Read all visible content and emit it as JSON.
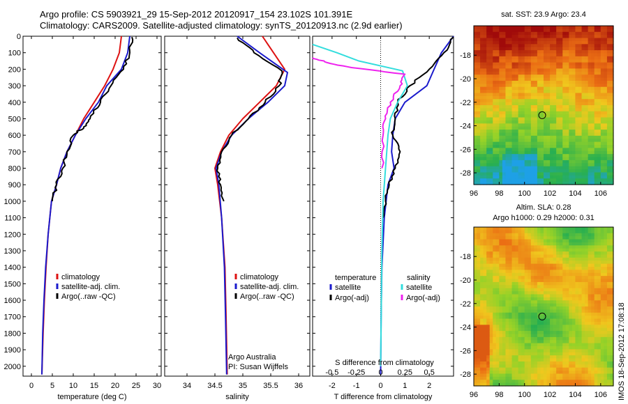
{
  "header": {
    "line1": "Argo profile: CS 5903921_29 15-Sep-2012 20120917_154 23.102S 101.391E",
    "line2": "Climatology: CARS2009. Satellite-adjusted climatology: synTS_20120913.nc (2.9d earlier)"
  },
  "side_label": "IMOS 18-Sep-2012 17:08:18",
  "colors": {
    "red": "#dd1111",
    "blue": "#1a1acc",
    "black": "#000000",
    "cyan": "#33dddd",
    "magenta": "#ee22ee"
  },
  "chart_data": [
    {
      "type": "line",
      "xlabel": "temperature (deg C)",
      "xlim": [
        -2,
        31
      ],
      "xticks": [
        0,
        5,
        10,
        15,
        20,
        25,
        30
      ],
      "ylim": [
        0,
        2060
      ],
      "yticks": [
        0,
        100,
        200,
        300,
        400,
        500,
        600,
        700,
        800,
        900,
        1000,
        1100,
        1200,
        1300,
        1400,
        1500,
        1600,
        1700,
        1800,
        1900,
        2000
      ],
      "legend": [
        "climatology",
        "satellite-adj. clim.",
        "Argo(..raw -QC)"
      ],
      "series": [
        {
          "name": "climatology",
          "color": "red",
          "x": [
            21.5,
            21,
            19.5,
            17.5,
            15,
            12.5,
            10.5,
            8.5,
            7,
            6,
            4.8,
            4,
            3.5,
            3.1,
            2.8,
            2.5
          ],
          "y": [
            0,
            100,
            200,
            300,
            400,
            500,
            600,
            700,
            800,
            900,
            1000,
            1200,
            1400,
            1600,
            1800,
            2050
          ]
        },
        {
          "name": "satellite-adj. clim.",
          "color": "blue",
          "x": [
            23.5,
            23,
            21.5,
            18,
            16,
            13,
            10.5,
            8.5,
            7,
            6,
            4.8,
            4,
            3.4,
            3,
            2.7,
            2.5
          ],
          "y": [
            0,
            100,
            200,
            300,
            400,
            500,
            600,
            700,
            800,
            900,
            1000,
            1200,
            1400,
            1600,
            1800,
            2050
          ]
        },
        {
          "name": "Argo(..raw -QC)",
          "color": "black",
          "x": [
            24,
            23.5,
            22,
            19,
            16.5,
            14,
            12.5,
            10,
            8.5,
            7.5,
            6,
            5
          ],
          "y": [
            5,
            100,
            200,
            300,
            400,
            500,
            550,
            600,
            700,
            800,
            900,
            1000
          ]
        }
      ]
    },
    {
      "type": "line",
      "xlabel": "salinity",
      "xlim": [
        33.6,
        36.2
      ],
      "xticks": [
        34,
        34.5,
        35,
        35.5,
        36
      ],
      "ylim": [
        0,
        2060
      ],
      "legend": [
        "climatology",
        "satellite-adj. clim.",
        "Argo(..raw -QC)"
      ],
      "annotation": [
        "Argo Australia",
        "PI: Susan Wijffels"
      ],
      "series": [
        {
          "name": "climatology",
          "color": "red",
          "x": [
            35.35,
            35.55,
            35.75,
            35.6,
            35.3,
            35.0,
            34.75,
            34.6,
            34.5,
            34.55,
            34.62,
            34.68,
            34.7,
            34.72
          ],
          "y": [
            0,
            100,
            200,
            300,
            400,
            500,
            600,
            700,
            800,
            900,
            1100,
            1400,
            1700,
            2050
          ]
        },
        {
          "name": "satellite-adj. clim.",
          "color": "blue",
          "x": [
            34.9,
            35.3,
            35.8,
            35.75,
            35.45,
            35.1,
            34.8,
            34.62,
            34.52,
            34.57,
            34.62,
            34.67,
            34.69,
            34.71
          ],
          "y": [
            0,
            100,
            220,
            300,
            400,
            500,
            600,
            700,
            800,
            900,
            1100,
            1400,
            1700,
            2050
          ]
        },
        {
          "name": "Argo(..raw -QC)",
          "color": "black",
          "x": [
            34.9,
            35.2,
            35.7,
            35.65,
            35.4,
            35.1,
            34.8,
            34.62,
            34.55,
            34.6,
            34.66
          ],
          "y": [
            10,
            100,
            210,
            300,
            400,
            500,
            600,
            700,
            800,
            900,
            1000
          ]
        }
      ]
    },
    {
      "type": "line",
      "xlabel": "T difference from climatology",
      "xlabel_top": "S difference from climatology",
      "xlim": [
        -2.8,
        3
      ],
      "xticks": [
        -2,
        -1,
        0,
        1,
        2
      ],
      "xticks_top": [
        -0.5,
        -0.25,
        0,
        0.25,
        0.5
      ],
      "xtick_top_labels": [
        "-0.5",
        "-0.25",
        "0",
        "0.25",
        "0.5"
      ],
      "ylim": [
        0,
        2060
      ],
      "legend_titles": [
        "temperature",
        "salinity"
      ],
      "legend": [
        "satellite",
        "Argo(-adj)",
        "satellite",
        "Argo(-adj)"
      ],
      "series": [
        {
          "name": "temperature satellite",
          "color": "blue",
          "x": [
            3,
            2.5,
            2.2,
            1.9,
            1.0,
            0.6,
            0.5,
            0.45,
            0.55,
            0.3,
            0.15,
            0.05,
            0.02,
            0
          ],
          "y": [
            0,
            100,
            200,
            300,
            400,
            500,
            600,
            700,
            800,
            900,
            1100,
            1400,
            1700,
            2050
          ]
        },
        {
          "name": "temperature Argo(-adj)",
          "color": "black",
          "x": [
            3,
            2.6,
            2.0,
            1.2,
            0.7,
            0.6,
            0.5,
            0.8,
            0.6,
            0.35,
            0.2,
            0.1
          ],
          "y": [
            5,
            100,
            200,
            300,
            400,
            500,
            600,
            700,
            800,
            900,
            1000,
            1100
          ]
        },
        {
          "name": "salinity satellite",
          "color": "cyan",
          "x": [
            -3,
            -1.8,
            -0.9,
            0.9,
            1.1,
            0.7,
            0.4,
            0.3,
            0.2,
            0.1,
            0.05,
            0
          ],
          "y": [
            50,
            100,
            150,
            210,
            300,
            400,
            500,
            600,
            800,
            1000,
            1300,
            2000
          ]
        },
        {
          "name": "salinity Argo(-adj)",
          "color": "magenta",
          "x": [
            -3,
            -2.2,
            -1.2,
            1.0,
            0.8,
            0.4,
            0.2,
            0.1,
            0.05
          ],
          "y": [
            130,
            160,
            190,
            230,
            300,
            400,
            500,
            600,
            800
          ]
        }
      ]
    },
    {
      "type": "heatmap",
      "title": "sat. SST: 23.9  Argo: 23.4",
      "xlim": [
        96,
        107
      ],
      "ylim": [
        -29,
        -15.5
      ],
      "xticks": [
        96,
        98,
        100,
        102,
        104,
        106
      ],
      "yticks": [
        -18,
        -20,
        -22,
        -24,
        -26,
        -28
      ],
      "marker": {
        "lon": 101.391,
        "lat": -23.102
      }
    },
    {
      "type": "heatmap",
      "title": "Altim. SLA: 0.28",
      "subtitle": "Argo h1000: 0.29  h2000: 0.31",
      "xlim": [
        96,
        107
      ],
      "ylim": [
        -29,
        -15.5
      ],
      "xticks": [
        96,
        98,
        100,
        102,
        104,
        106
      ],
      "yticks": [
        -18,
        -20,
        -22,
        -24,
        -26,
        -28
      ],
      "marker": {
        "lon": 101.391,
        "lat": -23.102
      }
    }
  ]
}
